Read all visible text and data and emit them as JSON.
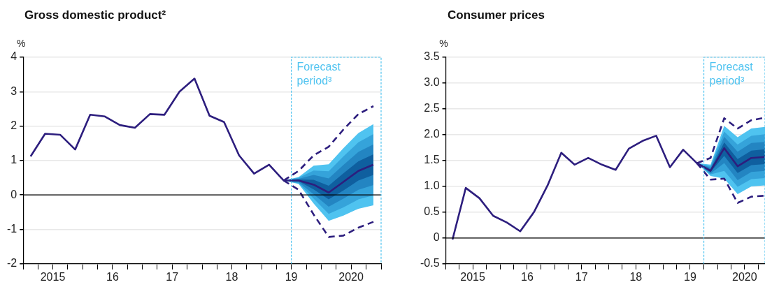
{
  "chart_data": [
    {
      "type": "line",
      "title": "Gross domestic product²",
      "ylabel": "%",
      "grid": "y",
      "legend": false,
      "marker": "none",
      "xlim": [
        "2015-01-01",
        "2021-01-01"
      ],
      "ylim": [
        -2,
        4
      ],
      "xticks": [
        {
          "value": "2015-01-01",
          "label": null
        },
        {
          "value": "2015-04-01",
          "label": null
        },
        {
          "value": "2015-07-01",
          "label": "2015"
        },
        {
          "value": "2015-10-01",
          "label": null
        },
        {
          "value": "2016-01-01",
          "label": null
        },
        {
          "value": "2016-04-01",
          "label": null
        },
        {
          "value": "2016-07-01",
          "label": "16"
        },
        {
          "value": "2016-10-01",
          "label": null
        },
        {
          "value": "2017-01-01",
          "label": null
        },
        {
          "value": "2017-04-01",
          "label": null
        },
        {
          "value": "2017-07-01",
          "label": "17"
        },
        {
          "value": "2017-10-01",
          "label": null
        },
        {
          "value": "2018-01-01",
          "label": null
        },
        {
          "value": "2018-04-01",
          "label": null
        },
        {
          "value": "2018-07-01",
          "label": "18"
        },
        {
          "value": "2018-10-01",
          "label": null
        },
        {
          "value": "2019-01-01",
          "label": null
        },
        {
          "value": "2019-04-01",
          "label": null
        },
        {
          "value": "2019-07-01",
          "label": "19"
        },
        {
          "value": "2019-10-01",
          "label": null
        },
        {
          "value": "2020-01-01",
          "label": null
        },
        {
          "value": "2020-04-01",
          "label": null
        },
        {
          "value": "2020-07-01",
          "label": "2020"
        },
        {
          "value": "2020-10-01",
          "label": null
        },
        {
          "value": "2021-01-01",
          "label": null
        }
      ],
      "yticks": [
        -2,
        -1,
        0,
        1,
        2,
        3,
        4
      ],
      "ref_lines": [
        {
          "axis": "y",
          "value": 0,
          "color": "#000000",
          "line_style": "solid"
        },
        {
          "axis": "x",
          "value": "2019-07-01",
          "label": "Forecast period³",
          "color": "#4fc3f0",
          "line_style": "dotted"
        }
      ],
      "series": [
        {
          "color": "#4fc3f0",
          "x": [
            "2019-05-15",
            "2019-08-15",
            "2019-11-15",
            "2020-02-15",
            "2020-05-15",
            "2020-08-15",
            "2020-11-15"
          ],
          "values": [
            null,
            null,
            null,
            null,
            null,
            null,
            null
          ],
          "lower": [
            0.42,
            0.32,
            -0.25,
            -0.75,
            -0.6,
            -0.4,
            -0.3
          ],
          "upper": [
            0.42,
            0.52,
            0.85,
            0.89,
            1.36,
            1.8,
            2.06
          ]
        },
        {
          "color": "#35a3da",
          "x": [
            "2019-05-15",
            "2019-08-15",
            "2019-11-15",
            "2020-02-15",
            "2020-05-15",
            "2020-08-15",
            "2020-11-15"
          ],
          "values": [
            null,
            null,
            null,
            null,
            null,
            null,
            null
          ],
          "lower": [
            0.42,
            0.34,
            -0.11,
            -0.55,
            -0.36,
            -0.13,
            -0.01
          ],
          "upper": [
            0.42,
            0.5,
            0.71,
            0.69,
            1.12,
            1.53,
            1.77
          ]
        },
        {
          "color": "#2385c2",
          "x": [
            "2019-05-15",
            "2019-08-15",
            "2019-11-15",
            "2020-02-15",
            "2020-05-15",
            "2020-08-15",
            "2020-11-15"
          ],
          "values": [
            null,
            null,
            null,
            null,
            null,
            null,
            null
          ],
          "lower": [
            0.42,
            0.37,
            0.02,
            -0.34,
            -0.11,
            0.15,
            0.29
          ],
          "upper": [
            0.42,
            0.47,
            0.58,
            0.48,
            0.87,
            1.25,
            1.47
          ]
        },
        {
          "color": "#0f5f9f",
          "x": [
            "2019-05-15",
            "2019-08-15",
            "2019-11-15",
            "2020-02-15",
            "2020-05-15",
            "2020-08-15",
            "2020-11-15"
          ],
          "values": [
            null,
            null,
            null,
            null,
            null,
            null,
            null
          ],
          "lower": [
            0.42,
            0.4,
            0.16,
            -0.13,
            0.13,
            0.42,
            0.58
          ],
          "upper": [
            0.42,
            0.45,
            0.44,
            0.27,
            0.63,
            0.98,
            1.18
          ]
        },
        {
          "color": "#2d1e7e",
          "line_style": "dashed",
          "x": [
            "2019-05-15",
            "2019-08-15",
            "2019-11-15",
            "2020-02-15",
            "2020-05-15",
            "2020-08-15",
            "2020-11-15"
          ],
          "values": [
            0.42,
            0.7,
            1.15,
            1.4,
            1.9,
            2.35,
            2.58
          ]
        },
        {
          "color": "#2d1e7e",
          "line_style": "dashed",
          "x": [
            "2019-05-15",
            "2019-08-15",
            "2019-11-15",
            "2020-02-15",
            "2020-05-15",
            "2020-08-15",
            "2020-11-15"
          ],
          "values": [
            0.42,
            0.15,
            -0.57,
            -1.22,
            -1.18,
            -0.95,
            -0.78
          ]
        },
        {
          "color": "#2d1e7e",
          "line_style": "solid",
          "x": [
            "2015-02-15",
            "2015-05-15",
            "2015-08-15",
            "2015-11-15",
            "2016-02-15",
            "2016-05-15",
            "2016-08-15",
            "2016-11-15",
            "2017-02-15",
            "2017-05-15",
            "2017-08-15",
            "2017-11-15",
            "2018-02-15",
            "2018-05-15",
            "2018-08-15",
            "2018-11-15",
            "2019-02-15",
            "2019-05-15",
            "2019-08-15",
            "2019-11-15",
            "2020-02-15",
            "2020-05-15",
            "2020-08-15",
            "2020-11-15"
          ],
          "values": [
            1.12,
            1.78,
            1.75,
            1.32,
            2.33,
            2.28,
            2.03,
            1.95,
            2.35,
            2.33,
            3.0,
            3.38,
            2.3,
            2.12,
            1.15,
            0.62,
            0.88,
            0.42,
            0.42,
            0.3,
            0.07,
            0.38,
            0.7,
            0.88
          ]
        }
      ]
    },
    {
      "type": "line",
      "title": "Consumer prices",
      "ylabel": "%",
      "grid": "y",
      "legend": false,
      "marker": "none",
      "xlim": [
        "2015-01-01",
        "2020-11-15"
      ],
      "ylim": [
        -0.5,
        3.5
      ],
      "xticks": [
        {
          "value": "2015-01-01",
          "label": null
        },
        {
          "value": "2015-04-01",
          "label": null
        },
        {
          "value": "2015-07-01",
          "label": "2015"
        },
        {
          "value": "2015-10-01",
          "label": null
        },
        {
          "value": "2016-01-01",
          "label": null
        },
        {
          "value": "2016-04-01",
          "label": null
        },
        {
          "value": "2016-07-01",
          "label": "16"
        },
        {
          "value": "2016-10-01",
          "label": null
        },
        {
          "value": "2017-01-01",
          "label": null
        },
        {
          "value": "2017-04-01",
          "label": null
        },
        {
          "value": "2017-07-01",
          "label": "17"
        },
        {
          "value": "2017-10-01",
          "label": null
        },
        {
          "value": "2018-01-01",
          "label": null
        },
        {
          "value": "2018-04-01",
          "label": null
        },
        {
          "value": "2018-07-01",
          "label": "18"
        },
        {
          "value": "2018-10-01",
          "label": null
        },
        {
          "value": "2019-01-01",
          "label": null
        },
        {
          "value": "2019-04-01",
          "label": null
        },
        {
          "value": "2019-07-01",
          "label": "19"
        },
        {
          "value": "2019-10-01",
          "label": null
        },
        {
          "value": "2020-01-01",
          "label": null
        },
        {
          "value": "2020-04-01",
          "label": null
        },
        {
          "value": "2020-07-01",
          "label": "2020"
        },
        {
          "value": "2020-10-01",
          "label": null
        }
      ],
      "yticks": [
        {
          "value": -0.5,
          "label": "-0.5"
        },
        0,
        {
          "value": 0.5,
          "label": "0.5"
        },
        {
          "value": 1,
          "label": "1.0"
        },
        {
          "value": 1.5,
          "label": "1.5"
        },
        {
          "value": 2,
          "label": "2.0"
        },
        {
          "value": 2.5,
          "label": "2.5"
        },
        {
          "value": 3,
          "label": "3.0"
        },
        {
          "value": 3.5,
          "label": "3.5"
        }
      ],
      "ref_lines": [
        {
          "axis": "y",
          "value": 0,
          "color": "#000000",
          "line_style": "solid"
        },
        {
          "axis": "x",
          "value": "2019-10-01",
          "label": "Forecast period³",
          "color": "#4fc3f0",
          "line_style": "dotted"
        }
      ],
      "series": [
        {
          "color": "#4fc3f0",
          "x": [
            "2019-08-15",
            "2019-11-15",
            "2020-02-15",
            "2020-05-15",
            "2020-08-15",
            "2020-11-15"
          ],
          "values": [
            null,
            null,
            null,
            null,
            null,
            null
          ],
          "lower": [
            1.45,
            1.2,
            1.15,
            0.85,
            1.0,
            1.02
          ],
          "upper": [
            1.45,
            1.42,
            2.17,
            1.95,
            2.12,
            2.15
          ]
        },
        {
          "color": "#35a3da",
          "x": [
            "2019-08-15",
            "2019-11-15",
            "2020-02-15",
            "2020-05-15",
            "2020-08-15",
            "2020-11-15"
          ],
          "values": [
            null,
            null,
            null,
            null,
            null,
            null
          ],
          "lower": [
            1.45,
            1.23,
            1.3,
            0.99,
            1.14,
            1.16
          ],
          "upper": [
            1.45,
            1.39,
            2.06,
            1.81,
            1.98,
            2.01
          ]
        },
        {
          "color": "#2385c2",
          "x": [
            "2019-08-15",
            "2019-11-15",
            "2020-02-15",
            "2020-05-15",
            "2020-08-15",
            "2020-11-15"
          ],
          "values": [
            null,
            null,
            null,
            null,
            null,
            null
          ],
          "lower": [
            1.45,
            1.25,
            1.45,
            1.12,
            1.28,
            1.3
          ],
          "upper": [
            1.45,
            1.36,
            1.96,
            1.67,
            1.84,
            1.86
          ]
        },
        {
          "color": "#0f5f9f",
          "x": [
            "2019-08-15",
            "2019-11-15",
            "2020-02-15",
            "2020-05-15",
            "2020-08-15",
            "2020-11-15"
          ],
          "values": [
            null,
            null,
            null,
            null,
            null,
            null
          ],
          "lower": [
            1.45,
            1.28,
            1.59,
            1.26,
            1.41,
            1.43
          ],
          "upper": [
            1.45,
            1.33,
            1.85,
            1.53,
            1.69,
            1.72
          ]
        },
        {
          "color": "#2d1e7e",
          "line_style": "dashed",
          "x": [
            "2019-08-15",
            "2019-11-15",
            "2020-02-15",
            "2020-05-15",
            "2020-08-15",
            "2020-11-15"
          ],
          "values": [
            1.45,
            1.55,
            2.32,
            2.12,
            2.28,
            2.33
          ]
        },
        {
          "color": "#2d1e7e",
          "line_style": "dashed",
          "x": [
            "2019-08-15",
            "2019-11-15",
            "2020-02-15",
            "2020-05-15",
            "2020-08-15",
            "2020-11-15"
          ],
          "values": [
            1.45,
            1.13,
            1.15,
            0.68,
            0.8,
            0.82
          ]
        },
        {
          "color": "#2d1e7e",
          "line_style": "solid",
          "x": [
            "2015-02-15",
            "2015-05-15",
            "2015-08-15",
            "2015-11-15",
            "2016-02-15",
            "2016-05-15",
            "2016-08-15",
            "2016-11-15",
            "2017-02-15",
            "2017-05-15",
            "2017-08-15",
            "2017-11-15",
            "2018-02-15",
            "2018-05-15",
            "2018-08-15",
            "2018-11-15",
            "2019-02-15",
            "2019-05-15",
            "2019-08-15",
            "2019-11-15",
            "2020-02-15",
            "2020-05-15",
            "2020-08-15",
            "2020-11-15"
          ],
          "values": [
            -0.03,
            0.97,
            0.77,
            0.43,
            0.3,
            0.13,
            0.5,
            1.02,
            1.65,
            1.42,
            1.55,
            1.42,
            1.32,
            1.73,
            1.88,
            1.98,
            1.37,
            1.71,
            1.45,
            1.3,
            1.74,
            1.39,
            1.55,
            1.57
          ]
        }
      ]
    }
  ]
}
